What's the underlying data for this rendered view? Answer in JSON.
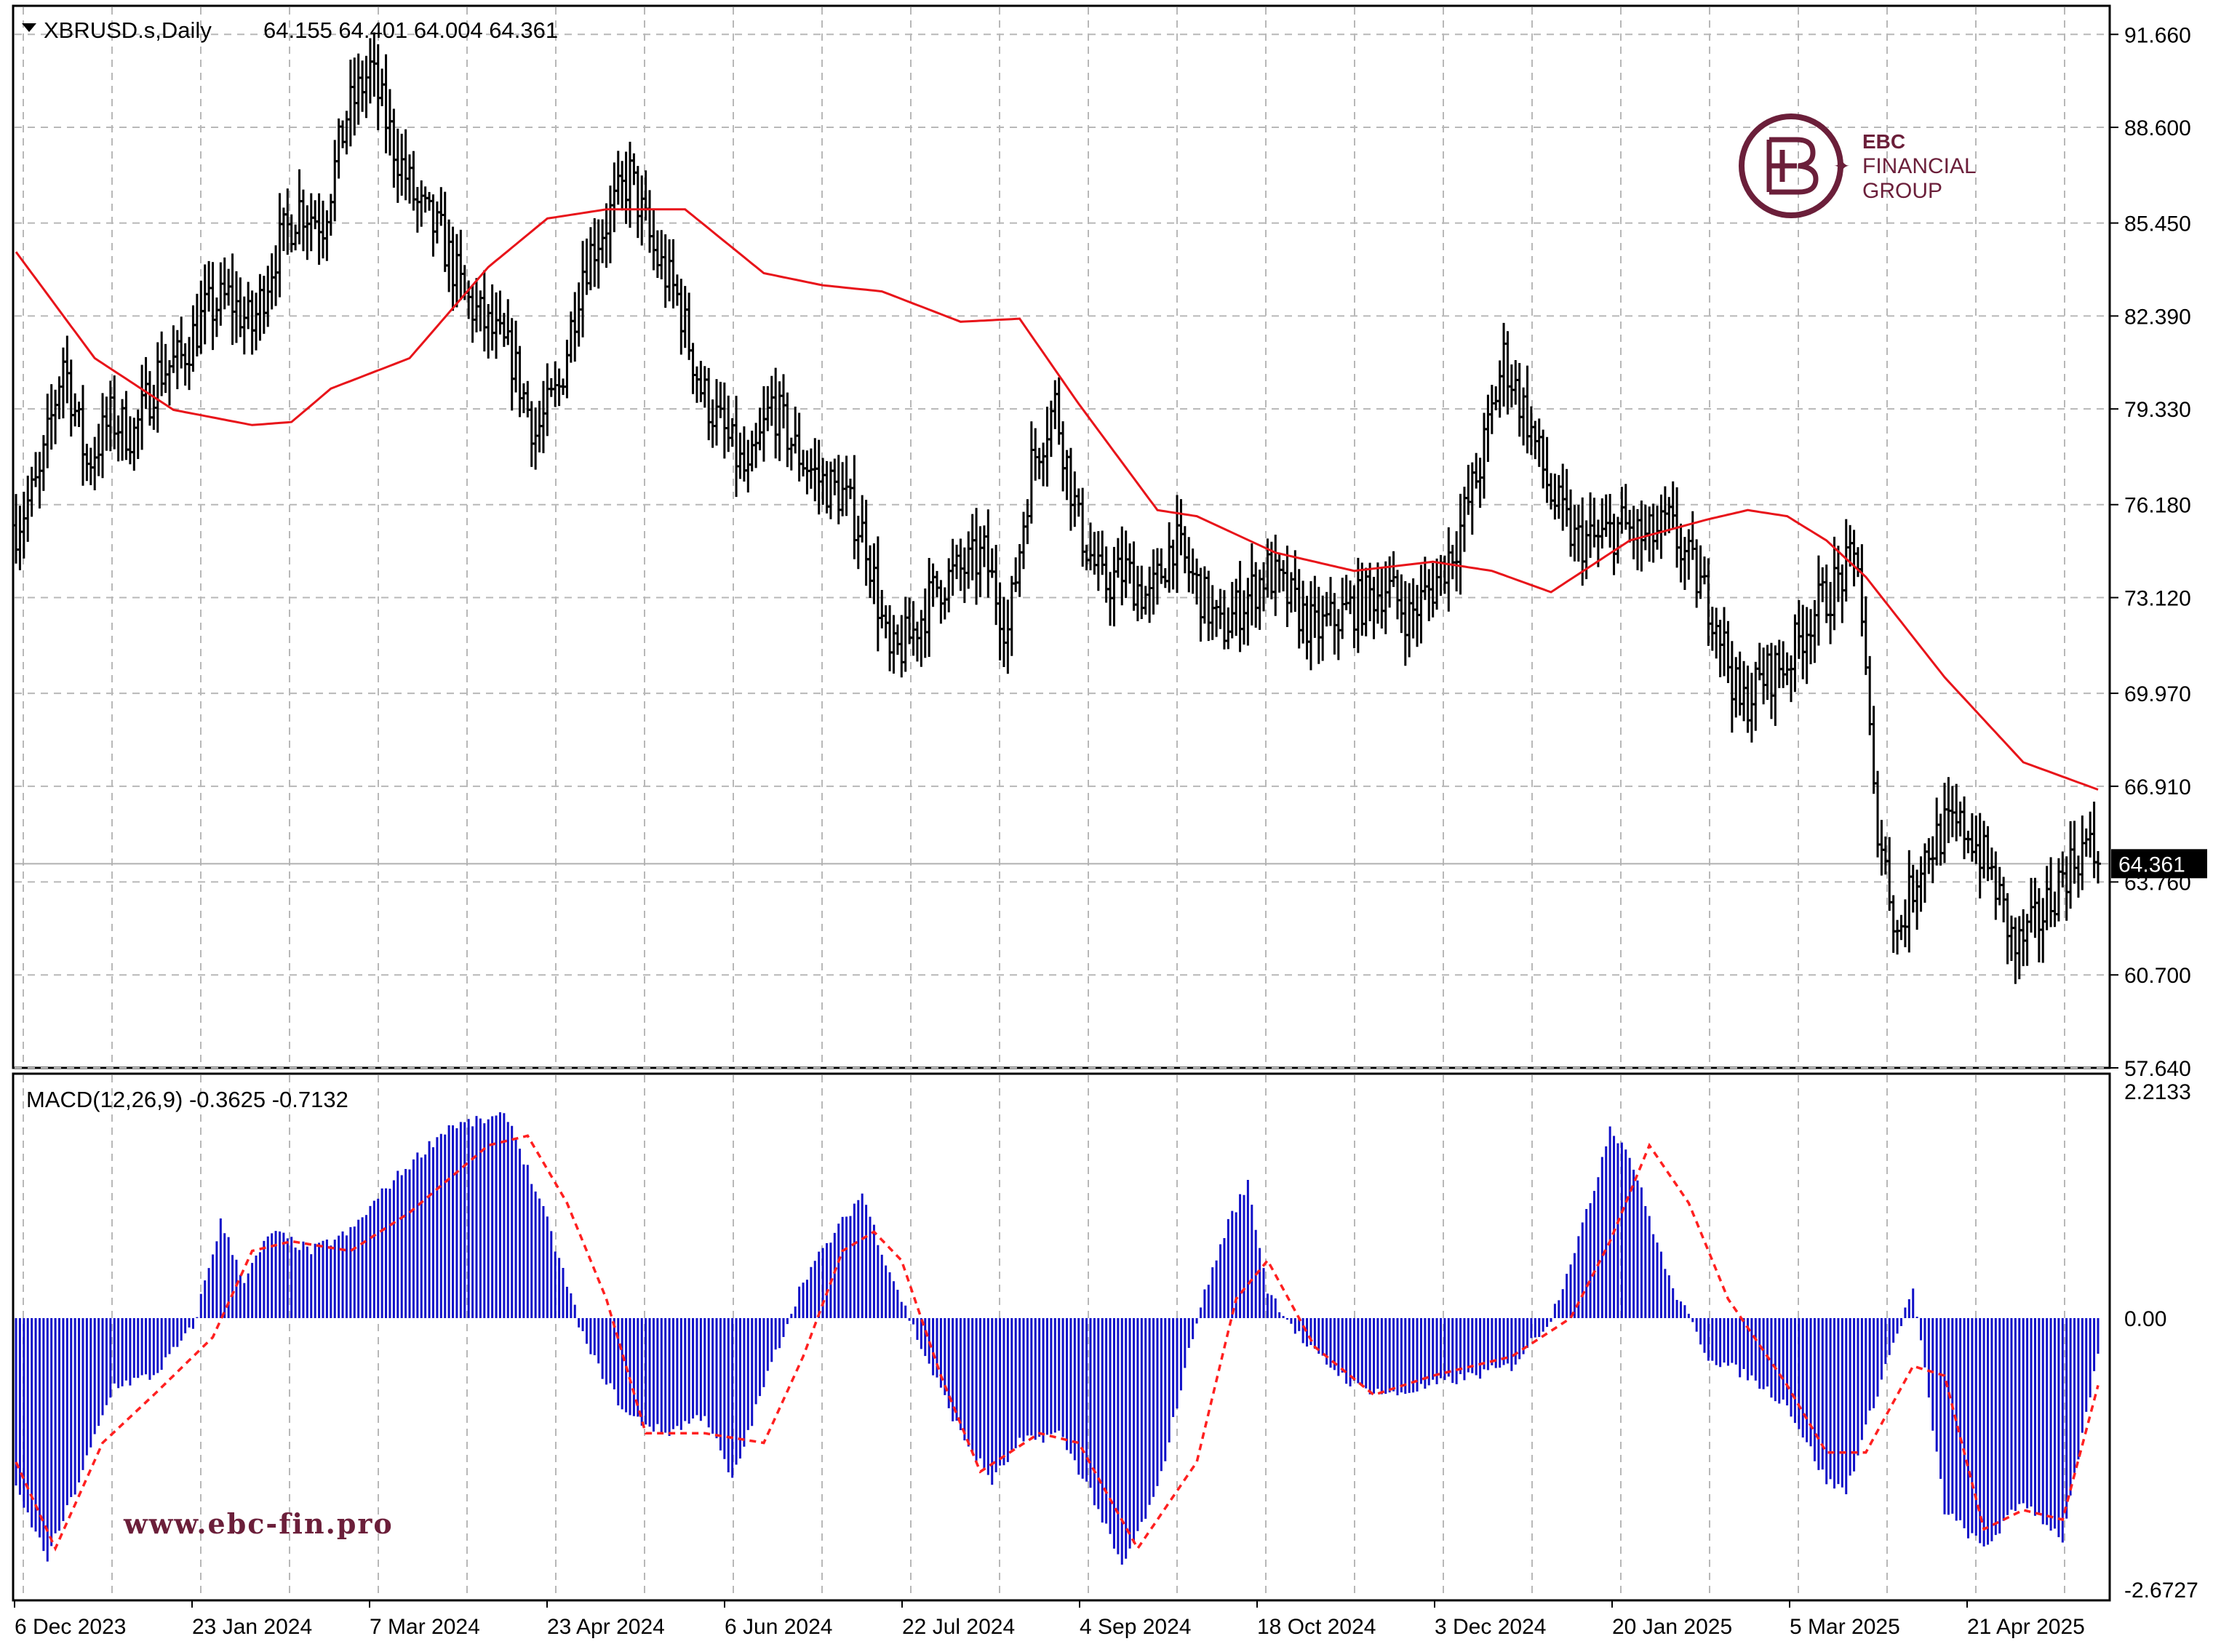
{
  "header": {
    "symbol": "XBRUSD.s,Daily",
    "ohlc": "64.155 64.401 64.004 64.361",
    "macd_label": "MACD(12,26,9) -0.3625 -0.7132"
  },
  "logo": {
    "brand": "EBC",
    "line1": "FINANCIAL",
    "line2": "GROUP"
  },
  "website": "www.ebc-fin.pro",
  "colors": {
    "price_bars": "#000000",
    "ma_line": "#e8141a",
    "macd_hist": "#1010c8",
    "signal_line": "#ff2020",
    "brand": "#6b1f3a",
    "grid": "#b8b8b8"
  },
  "chart_data": [
    {
      "type": "ohlc",
      "symbol": "XBRUSD.s",
      "timeframe": "Daily",
      "last_price": "64.361",
      "y_ticks": [
        "91.660",
        "88.600",
        "85.450",
        "82.390",
        "79.330",
        "76.180",
        "73.120",
        "69.970",
        "66.910",
        "63.760",
        "60.700",
        "57.640"
      ],
      "ylim": [
        57.64,
        92.6
      ],
      "grid": true,
      "x_ticks": [
        "6 Dec 2023",
        "23 Jan 2024",
        "7 Mar 2024",
        "23 Apr 2024",
        "6 Jun 2024",
        "22 Jul 2024",
        "4 Sep 2024",
        "18 Oct 2024",
        "3 Dec 2024",
        "20 Jan 2025",
        "5 Mar 2025",
        "21 Apr 2025"
      ],
      "close_anchors": [
        [
          0,
          75.5
        ],
        [
          6,
          77.0
        ],
        [
          12,
          81.0
        ],
        [
          18,
          77.5
        ],
        [
          24,
          79.0
        ],
        [
          30,
          78.5
        ],
        [
          36,
          80.5
        ],
        [
          42,
          81.0
        ],
        [
          48,
          82.5
        ],
        [
          54,
          83.0
        ],
        [
          60,
          82.0
        ],
        [
          66,
          84.5
        ],
        [
          72,
          86.0
        ],
        [
          78,
          85.5
        ],
        [
          84,
          89.0
        ],
        [
          90,
          90.5
        ],
        [
          96,
          88.0
        ],
        [
          102,
          86.0
        ],
        [
          108,
          85.0
        ],
        [
          114,
          83.0
        ],
        [
          120,
          82.0
        ],
        [
          126,
          81.0
        ],
        [
          132,
          78.5
        ],
        [
          138,
          80.0
        ],
        [
          144,
          84.0
        ],
        [
          150,
          85.5
        ],
        [
          156,
          87.0
        ],
        [
          162,
          84.5
        ],
        [
          168,
          83.0
        ],
        [
          174,
          80.0
        ],
        [
          180,
          78.5
        ],
        [
          186,
          77.0
        ],
        [
          192,
          79.5
        ],
        [
          198,
          78.0
        ],
        [
          204,
          77.0
        ],
        [
          210,
          76.5
        ],
        [
          216,
          75.0
        ],
        [
          222,
          71.0
        ],
        [
          228,
          72.0
        ],
        [
          234,
          73.5
        ],
        [
          240,
          74.0
        ],
        [
          246,
          74.5
        ],
        [
          252,
          72.0
        ],
        [
          258,
          77.5
        ],
        [
          264,
          79.5
        ],
        [
          270,
          75.5
        ],
        [
          276,
          73.5
        ],
        [
          282,
          74.0
        ],
        [
          288,
          73.0
        ],
        [
          294,
          75.0
        ],
        [
          300,
          73.5
        ],
        [
          306,
          72.0
        ],
        [
          312,
          73.0
        ],
        [
          318,
          74.0
        ],
        [
          324,
          73.0
        ],
        [
          330,
          72.0
        ],
        [
          336,
          72.5
        ],
        [
          342,
          73.0
        ],
        [
          348,
          73.5
        ],
        [
          354,
          72.5
        ],
        [
          360,
          73.5
        ],
        [
          366,
          75.0
        ],
        [
          372,
          77.5
        ],
        [
          378,
          81.0
        ],
        [
          384,
          79.0
        ],
        [
          390,
          76.5
        ],
        [
          396,
          75.0
        ],
        [
          402,
          75.0
        ],
        [
          408,
          75.5
        ],
        [
          414,
          75.0
        ],
        [
          420,
          75.5
        ],
        [
          426,
          74.0
        ],
        [
          432,
          72.5
        ],
        [
          438,
          69.5
        ],
        [
          444,
          70.5
        ],
        [
          450,
          71.0
        ],
        [
          456,
          72.5
        ],
        [
          462,
          73.5
        ],
        [
          468,
          74.5
        ],
        [
          472,
          66.5
        ],
        [
          478,
          62.0
        ],
        [
          484,
          64.5
        ],
        [
          490,
          65.5
        ],
        [
          496,
          65.5
        ],
        [
          502,
          64.0
        ],
        [
          508,
          61.5
        ],
        [
          514,
          62.5
        ],
        [
          520,
          64.0
        ],
        [
          526,
          65.0
        ],
        [
          529,
          64.361
        ]
      ],
      "ma_anchors": [
        [
          0,
          84.5
        ],
        [
          20,
          81.0
        ],
        [
          40,
          79.3
        ],
        [
          60,
          78.8
        ],
        [
          70,
          78.9
        ],
        [
          80,
          80.0
        ],
        [
          100,
          81.0
        ],
        [
          120,
          84.0
        ],
        [
          135,
          85.6
        ],
        [
          150,
          85.9
        ],
        [
          170,
          85.9
        ],
        [
          190,
          83.8
        ],
        [
          205,
          83.4
        ],
        [
          220,
          83.2
        ],
        [
          240,
          82.2
        ],
        [
          255,
          82.3
        ],
        [
          270,
          79.5
        ],
        [
          290,
          76.0
        ],
        [
          300,
          75.8
        ],
        [
          320,
          74.6
        ],
        [
          340,
          74.0
        ],
        [
          360,
          74.3
        ],
        [
          375,
          74.0
        ],
        [
          390,
          73.3
        ],
        [
          410,
          75.0
        ],
        [
          430,
          75.7
        ],
        [
          440,
          76.0
        ],
        [
          450,
          75.8
        ],
        [
          460,
          75.0
        ],
        [
          470,
          73.8
        ],
        [
          490,
          70.5
        ],
        [
          510,
          67.7
        ],
        [
          529,
          66.8
        ]
      ],
      "pane_tick_x_index": [
        0,
        17,
        33,
        50,
        66,
        83,
        99,
        116,
        132,
        149,
        165,
        182
      ]
    },
    {
      "type": "macd",
      "label": "MACD(12,26,9)",
      "macd_value": "-0.3625",
      "signal_value": "-0.7132",
      "y_ticks": [
        "2.2133",
        "0.00",
        "-2.6727"
      ],
      "ylim": [
        -2.6727,
        2.2133
      ],
      "macd_anchors": [
        [
          0,
          -1.8
        ],
        [
          8,
          -2.5
        ],
        [
          15,
          -1.8
        ],
        [
          25,
          -0.7
        ],
        [
          35,
          -0.6
        ],
        [
          45,
          -0.1
        ],
        [
          52,
          1.0
        ],
        [
          58,
          0.4
        ],
        [
          65,
          0.9
        ],
        [
          75,
          0.7
        ],
        [
          85,
          0.9
        ],
        [
          95,
          1.4
        ],
        [
          110,
          2.0
        ],
        [
          125,
          2.1
        ],
        [
          135,
          1.0
        ],
        [
          145,
          -0.3
        ],
        [
          155,
          -1.0
        ],
        [
          165,
          -1.2
        ],
        [
          175,
          -1.0
        ],
        [
          182,
          -1.7
        ],
        [
          190,
          -0.7
        ],
        [
          200,
          0.4
        ],
        [
          210,
          1.0
        ],
        [
          215,
          1.3
        ],
        [
          220,
          0.7
        ],
        [
          230,
          -0.3
        ],
        [
          240,
          -1.2
        ],
        [
          248,
          -1.7
        ],
        [
          255,
          -1.3
        ],
        [
          265,
          -1.2
        ],
        [
          273,
          -1.8
        ],
        [
          281,
          -2.6
        ],
        [
          290,
          -1.8
        ],
        [
          300,
          0.0
        ],
        [
          308,
          1.0
        ],
        [
          313,
          1.4
        ],
        [
          318,
          0.3
        ],
        [
          328,
          -0.3
        ],
        [
          340,
          -0.7
        ],
        [
          350,
          -0.8
        ],
        [
          360,
          -0.7
        ],
        [
          370,
          -0.6
        ],
        [
          380,
          -0.5
        ],
        [
          390,
          0.0
        ],
        [
          400,
          1.2
        ],
        [
          405,
          2.0
        ],
        [
          410,
          1.7
        ],
        [
          420,
          0.4
        ],
        [
          430,
          -0.4
        ],
        [
          440,
          -0.6
        ],
        [
          450,
          -0.9
        ],
        [
          460,
          -1.7
        ],
        [
          465,
          -1.8
        ],
        [
          475,
          -0.5
        ],
        [
          482,
          0.3
        ],
        [
          490,
          -2.0
        ],
        [
          500,
          -2.4
        ],
        [
          510,
          -1.9
        ],
        [
          520,
          -2.3
        ],
        [
          529,
          -0.4
        ]
      ],
      "signal_anchors": [
        [
          0,
          -1.5
        ],
        [
          10,
          -2.4
        ],
        [
          22,
          -1.3
        ],
        [
          35,
          -0.8
        ],
        [
          50,
          -0.2
        ],
        [
          60,
          0.7
        ],
        [
          70,
          0.8
        ],
        [
          85,
          0.7
        ],
        [
          100,
          1.1
        ],
        [
          120,
          1.8
        ],
        [
          130,
          1.9
        ],
        [
          140,
          1.2
        ],
        [
          150,
          0.2
        ],
        [
          160,
          -1.2
        ],
        [
          175,
          -1.2
        ],
        [
          190,
          -1.3
        ],
        [
          200,
          -0.4
        ],
        [
          210,
          0.7
        ],
        [
          218,
          0.9
        ],
        [
          225,
          0.6
        ],
        [
          235,
          -0.6
        ],
        [
          245,
          -1.6
        ],
        [
          260,
          -1.2
        ],
        [
          270,
          -1.3
        ],
        [
          285,
          -2.4
        ],
        [
          300,
          -1.5
        ],
        [
          310,
          0.2
        ],
        [
          318,
          0.6
        ],
        [
          330,
          -0.3
        ],
        [
          345,
          -0.8
        ],
        [
          360,
          -0.6
        ],
        [
          380,
          -0.4
        ],
        [
          395,
          0.0
        ],
        [
          405,
          0.8
        ],
        [
          415,
          1.8
        ],
        [
          425,
          1.2
        ],
        [
          435,
          0.2
        ],
        [
          450,
          -0.7
        ],
        [
          460,
          -1.4
        ],
        [
          470,
          -1.4
        ],
        [
          482,
          -0.5
        ],
        [
          490,
          -0.6
        ],
        [
          500,
          -2.2
        ],
        [
          510,
          -2.0
        ],
        [
          520,
          -2.1
        ],
        [
          529,
          -0.7
        ]
      ]
    }
  ]
}
